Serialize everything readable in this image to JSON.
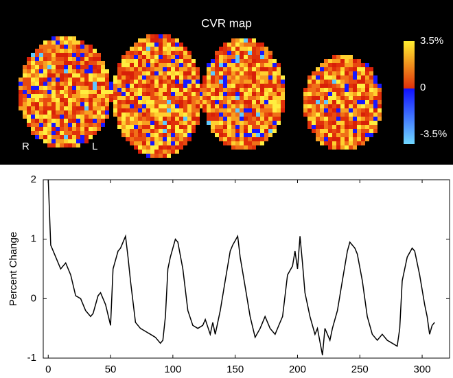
{
  "cvr_map": {
    "title": "CVR map",
    "colorbar_ticks": [
      {
        "value": 3.5,
        "label": "3.5%"
      },
      0,
      {
        "value": -3.5,
        "label": "-3.5%"
      }
    ],
    "side_labels": [
      "R",
      "L"
    ]
  },
  "chart_data": {
    "type": "line",
    "y_label": "Percent Change",
    "x": [
      0,
      2,
      6,
      10,
      14,
      18,
      22,
      26,
      30,
      34,
      36,
      40,
      42,
      46,
      50,
      52,
      56,
      58,
      62,
      64,
      66,
      70,
      74,
      78,
      82,
      86,
      90,
      92,
      94,
      96,
      98,
      102,
      104,
      108,
      112,
      116,
      120,
      124,
      126,
      130,
      132,
      134,
      138,
      142,
      146,
      148,
      152,
      154,
      158,
      162,
      166,
      170,
      174,
      178,
      182,
      186,
      188,
      192,
      196,
      198,
      200,
      202,
      204,
      206,
      210,
      214,
      216,
      220,
      222,
      226,
      228,
      232,
      236,
      240,
      242,
      246,
      248,
      252,
      256,
      260,
      264,
      268,
      272,
      276,
      280,
      282,
      284,
      288,
      292,
      294,
      298,
      302,
      304,
      306,
      308,
      310
    ],
    "series": [
      {
        "name": null,
        "color": "#000000",
        "values": [
          2,
          0.9,
          0.7,
          0.5,
          0.6,
          0.4,
          0.05,
          0,
          -0.2,
          -0.3,
          -0.25,
          0.05,
          0.1,
          -0.1,
          -0.45,
          0.5,
          0.8,
          0.85,
          1.05,
          0.7,
          0.3,
          -0.4,
          -0.5,
          -0.55,
          -0.6,
          -0.65,
          -0.75,
          -0.7,
          -0.3,
          0.5,
          0.7,
          1.0,
          0.95,
          0.5,
          -0.2,
          -0.45,
          -0.5,
          -0.45,
          -0.35,
          -0.6,
          -0.4,
          -0.6,
          -0.2,
          0.3,
          0.8,
          0.9,
          1.05,
          0.7,
          0.2,
          -0.3,
          -0.65,
          -0.5,
          -0.3,
          -0.5,
          -0.6,
          -0.4,
          -0.3,
          0.4,
          0.55,
          0.8,
          0.5,
          1.05,
          0.6,
          0.1,
          -0.3,
          -0.6,
          -0.5,
          -0.95,
          -0.5,
          -0.7,
          -0.5,
          -0.2,
          0.3,
          0.8,
          0.95,
          0.85,
          0.75,
          0.3,
          -0.3,
          -0.6,
          -0.7,
          -0.6,
          -0.7,
          -0.75,
          -0.8,
          -0.5,
          0.3,
          0.7,
          0.85,
          0.8,
          0.4,
          -0.1,
          -0.3,
          -0.6,
          -0.45,
          -0.4
        ]
      }
    ],
    "xlim": [
      -4,
      322
    ],
    "ylim": [
      -1,
      2
    ],
    "xticks": [
      0,
      50,
      100,
      150,
      200,
      250,
      300
    ],
    "yticks": [
      -1,
      0,
      1,
      2
    ]
  }
}
